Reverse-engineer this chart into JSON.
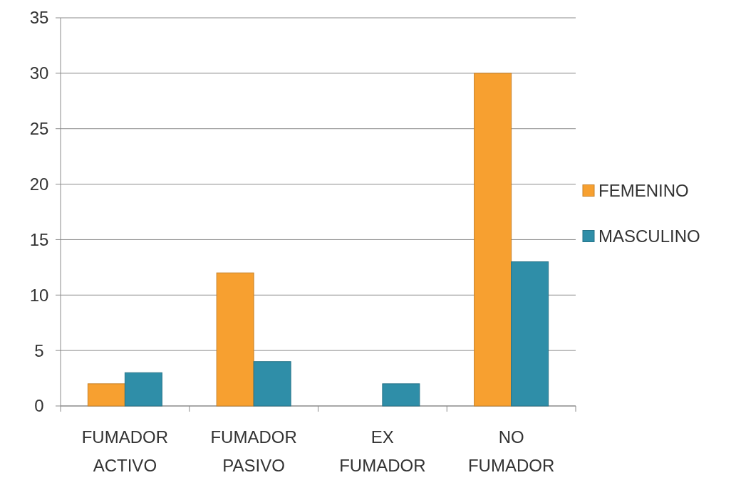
{
  "chart_data": {
    "type": "bar",
    "categories": [
      "FUMADOR ACTIVO",
      "FUMADOR PASIVO",
      "EX FUMADOR",
      "NO FUMADOR"
    ],
    "series": [
      {
        "name": "FEMENINO",
        "color": "#f7a030",
        "values": [
          2,
          12,
          0,
          30
        ]
      },
      {
        "name": "MASCULINO",
        "color": "#2f8ea8",
        "values": [
          3,
          4,
          2,
          13
        ]
      }
    ],
    "ylim": [
      0,
      35
    ],
    "yticks": [
      0,
      5,
      10,
      15,
      20,
      25,
      30,
      35
    ],
    "grid": "y",
    "legend": "right"
  }
}
